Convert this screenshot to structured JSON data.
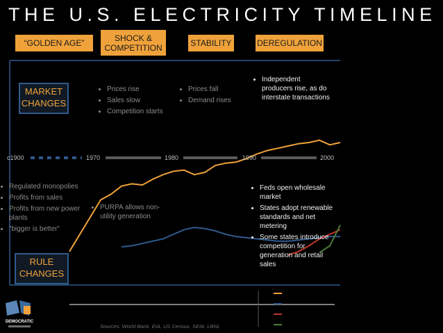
{
  "title": "THE U.S. ELECTRICITY TIMELINE",
  "eras": [
    {
      "label": "“GOLDEN AGE”"
    },
    {
      "label": "SHOCK & COMPETITION"
    },
    {
      "label": "STABILITY"
    },
    {
      "label": "DEREGULATION"
    }
  ],
  "market_changes": {
    "label": "MARKET CHANGES",
    "shock_bullets": [
      "Prices rise",
      "Sales slow",
      "Competition starts"
    ],
    "stability_bullets": [
      "Prices fall",
      "Demand rises"
    ],
    "dereg_bullets": [
      "Independent producers rise, as do interstate transactions"
    ]
  },
  "rule_changes": {
    "label": "RULE CHANGES",
    "golden_bullets": [
      "Regulated monopolies",
      "Profits from sales",
      "Profits from new power plants",
      "“bigger is better”"
    ],
    "shock_bullets": [
      "PURPA allows non-utility generation"
    ],
    "dereg_bullets": [
      "Feds open wholesale market",
      "States adopt renewable standards and net metering",
      "Some states introduce competition for generation and retail sales"
    ]
  },
  "timeline_ticks": [
    "c1900",
    "1970",
    "1980",
    "1990",
    "2000"
  ],
  "source": "Sources: World Bank, EIA, US Census, SEIA, LBNL",
  "logo_text": "DEMOCRATIC",
  "colors": {
    "orange": "#f0a23a",
    "blue": "#2f5a8e",
    "red": "#c0392b",
    "green": "#4a7a3a",
    "gray_line": "#5a5a5a"
  },
  "chart_data": {
    "type": "line",
    "x": [
      1960,
      1962,
      1964,
      1966,
      1968,
      1970,
      1972,
      1974,
      1976,
      1978,
      1980,
      1982,
      1984,
      1986,
      1988,
      1990,
      1992,
      1994,
      1996,
      1998,
      2000,
      2002,
      2004,
      2006,
      2008,
      2010,
      2012
    ],
    "series": [
      {
        "color": "#f0a23a",
        "values": [
          0.05,
          0.2,
          0.35,
          0.5,
          0.55,
          0.62,
          0.64,
          0.63,
          0.68,
          0.72,
          0.75,
          0.76,
          0.72,
          0.74,
          0.8,
          0.82,
          0.83,
          0.86,
          0.9,
          0.93,
          0.95,
          0.97,
          0.99,
          1.0,
          1.02,
          0.98,
          1.0
        ]
      },
      {
        "color": "#2f5a8e",
        "values": [
          null,
          null,
          null,
          null,
          null,
          0.09,
          0.1,
          0.12,
          0.14,
          0.16,
          0.2,
          0.24,
          0.26,
          0.25,
          0.23,
          0.2,
          0.18,
          0.17,
          0.16,
          0.15,
          0.14,
          0.14,
          0.15,
          0.16,
          0.17,
          0.18,
          0.18
        ]
      },
      {
        "color": "#c0392b",
        "values": [
          null,
          null,
          null,
          null,
          null,
          null,
          null,
          null,
          null,
          null,
          null,
          null,
          null,
          null,
          null,
          null,
          null,
          null,
          null,
          null,
          null,
          0.02,
          0.05,
          0.1,
          0.16,
          0.2,
          0.24
        ]
      },
      {
        "color": "#4a7a3a",
        "values": [
          null,
          null,
          null,
          null,
          null,
          null,
          null,
          null,
          null,
          null,
          null,
          null,
          null,
          null,
          null,
          null,
          null,
          null,
          null,
          null,
          null,
          null,
          null,
          null,
          0.04,
          0.1,
          0.28
        ]
      }
    ]
  }
}
